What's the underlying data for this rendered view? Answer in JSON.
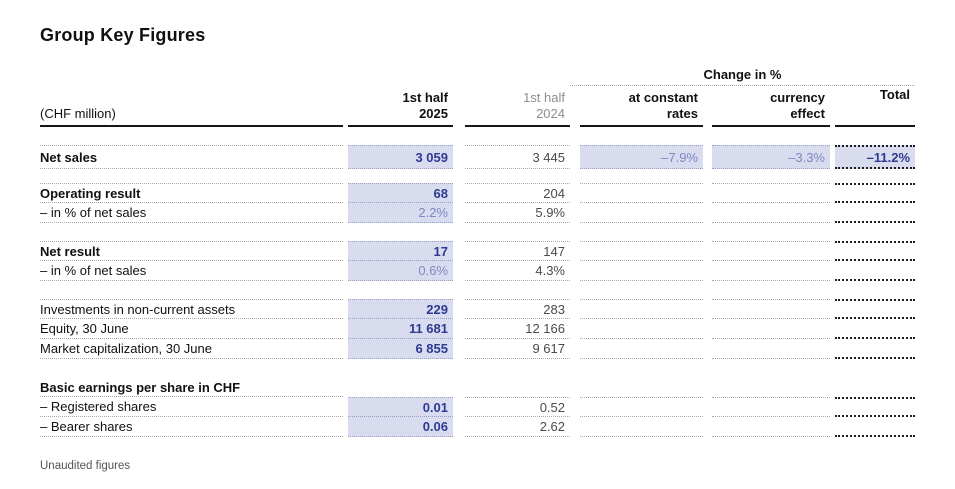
{
  "page": {
    "title": "Group Key Figures",
    "footer_note": "Unaudited figures"
  },
  "table": {
    "unit_label": "(CHF million)",
    "change_group_label": "Change in %",
    "columns": {
      "h1_2025": {
        "line1": "1st half",
        "line2": "2025"
      },
      "h1_2024": {
        "line1": "1st half",
        "line2": "2024"
      },
      "const_rates": {
        "line1": "at constant",
        "line2": "rates"
      },
      "currency_effect": {
        "line1": "currency",
        "line2": "effect"
      },
      "total": {
        "line1": "Total"
      }
    },
    "rows": {
      "net_sales": {
        "label": "Net sales",
        "h1_2025": "3 059",
        "h1_2024": "3 445",
        "const_rates": "–7.9%",
        "currency_effect": "–3.3%",
        "total": "–11.2%"
      },
      "operating_result": {
        "label": "Operating result",
        "h1_2025": "68",
        "h1_2024": "204"
      },
      "operating_margin": {
        "label": "– in % of net sales",
        "h1_2025": "2.2%",
        "h1_2024": "5.9%"
      },
      "net_result": {
        "label": "Net result",
        "h1_2025": "17",
        "h1_2024": "147"
      },
      "net_margin": {
        "label": "– in % of net sales",
        "h1_2025": "0.6%",
        "h1_2024": "4.3%"
      },
      "investments": {
        "label": "Investments in non-current assets",
        "h1_2025": "229",
        "h1_2024": "283"
      },
      "equity": {
        "label": "Equity, 30 June",
        "h1_2025": "11 681",
        "h1_2024": "12 166"
      },
      "market_cap": {
        "label": "Market capitalization, 30 June",
        "h1_2025": "6 855",
        "h1_2024": "9 617"
      },
      "eps_header": {
        "label": "Basic earnings per share in CHF"
      },
      "eps_registered": {
        "label": "– Registered shares",
        "h1_2025": "0.01",
        "h1_2024": "0.52"
      },
      "eps_bearer": {
        "label": "– Bearer shares",
        "h1_2025": "0.06",
        "h1_2024": "2.62"
      }
    }
  },
  "colors": {
    "highlight_bg": "#d9dcee",
    "accent_navy": "#2c3a92",
    "muted_blue": "#7e88c2",
    "header_gray_2024": "#8e8e8e",
    "values_gray_2024": "#4b4b4b",
    "text": "#111111"
  }
}
